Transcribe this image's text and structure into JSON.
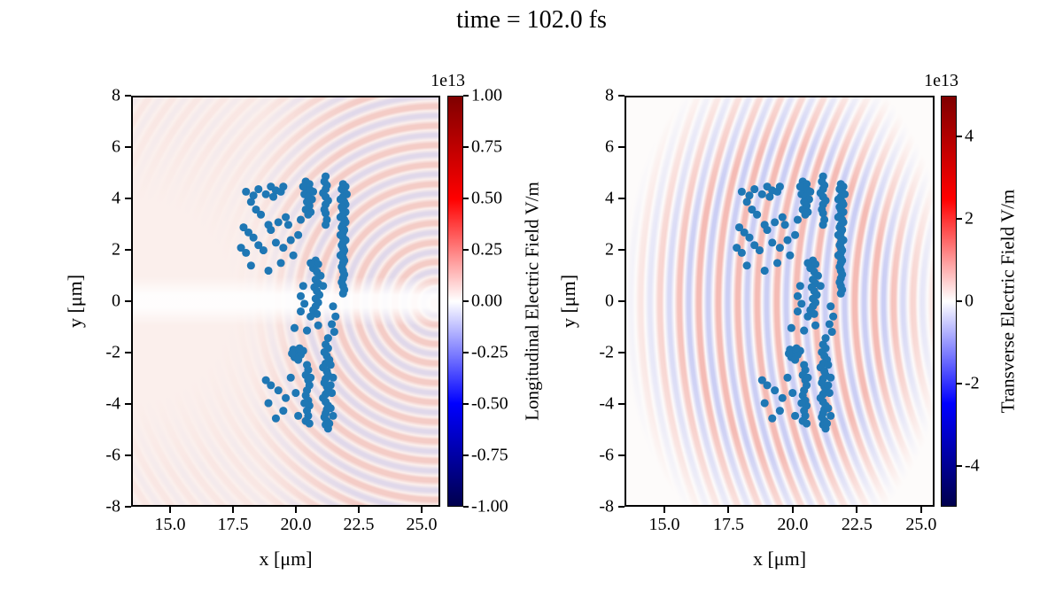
{
  "title": "time = 102.0 fs",
  "chart_data": {
    "type": "scatter",
    "description": "Two particle-in-cell simulation panels: macroparticle scatter over electric-field colormap",
    "scatter": {
      "name": "macroparticles",
      "color": "#1f77b4",
      "marker_radius_px": 4.6,
      "points": [
        [
          21.9,
          4.6
        ],
        [
          22.0,
          4.5
        ],
        [
          21.85,
          4.4
        ],
        [
          21.95,
          4.3
        ],
        [
          22.05,
          4.2
        ],
        [
          21.9,
          4.1
        ],
        [
          21.8,
          4.0
        ],
        [
          21.95,
          3.9
        ],
        [
          22.0,
          3.8
        ],
        [
          21.85,
          3.7
        ],
        [
          21.9,
          3.6
        ],
        [
          22.0,
          3.5
        ],
        [
          21.9,
          3.4
        ],
        [
          21.8,
          3.3
        ],
        [
          21.95,
          3.2
        ],
        [
          22.0,
          3.1
        ],
        [
          21.9,
          3.0
        ],
        [
          21.85,
          2.9
        ],
        [
          21.95,
          2.8
        ],
        [
          21.9,
          2.7
        ],
        [
          21.8,
          2.6
        ],
        [
          21.9,
          2.5
        ],
        [
          22.0,
          2.4
        ],
        [
          21.9,
          2.3
        ],
        [
          21.85,
          2.2
        ],
        [
          21.9,
          2.1
        ],
        [
          21.95,
          2.0
        ],
        [
          21.9,
          1.9
        ],
        [
          21.8,
          1.8
        ],
        [
          21.9,
          1.7
        ],
        [
          21.95,
          1.6
        ],
        [
          21.9,
          1.5
        ],
        [
          21.85,
          1.35
        ],
        [
          21.9,
          1.2
        ],
        [
          21.95,
          1.05
        ],
        [
          21.9,
          0.9
        ],
        [
          21.85,
          0.75
        ],
        [
          21.9,
          0.6
        ],
        [
          21.95,
          0.45
        ],
        [
          21.9,
          0.3
        ],
        [
          21.5,
          -0.2
        ],
        [
          21.6,
          -0.6
        ],
        [
          21.45,
          -0.9
        ],
        [
          21.55,
          -1.2
        ],
        [
          21.2,
          4.9
        ],
        [
          21.15,
          4.7
        ],
        [
          21.25,
          4.55
        ],
        [
          21.2,
          4.4
        ],
        [
          21.1,
          4.25
        ],
        [
          21.2,
          4.1
        ],
        [
          21.3,
          3.95
        ],
        [
          21.2,
          3.8
        ],
        [
          21.15,
          3.6
        ],
        [
          21.2,
          3.45
        ],
        [
          21.25,
          3.2
        ],
        [
          21.2,
          3.0
        ],
        [
          20.4,
          4.7
        ],
        [
          20.55,
          4.6
        ],
        [
          20.45,
          4.45
        ],
        [
          20.6,
          4.35
        ],
        [
          20.35,
          4.2
        ],
        [
          20.5,
          4.1
        ],
        [
          20.65,
          4.0
        ],
        [
          20.45,
          3.9
        ],
        [
          20.55,
          3.75
        ],
        [
          20.4,
          3.6
        ],
        [
          20.6,
          3.5
        ],
        [
          20.5,
          3.4
        ],
        [
          20.3,
          4.5
        ],
        [
          20.7,
          4.3
        ],
        [
          20.8,
          1.6
        ],
        [
          20.9,
          1.45
        ],
        [
          20.7,
          1.3
        ],
        [
          20.85,
          1.15
        ],
        [
          21.0,
          1.0
        ],
        [
          20.8,
          0.85
        ],
        [
          20.9,
          0.7
        ],
        [
          20.75,
          0.55
        ],
        [
          20.85,
          0.4
        ],
        [
          20.95,
          0.25
        ],
        [
          20.8,
          0.1
        ],
        [
          20.9,
          -0.05
        ],
        [
          20.8,
          -0.2
        ],
        [
          20.7,
          -0.35
        ],
        [
          20.85,
          -0.5
        ],
        [
          20.6,
          1.5
        ],
        [
          21.1,
          0.6
        ],
        [
          20.6,
          -0.6
        ],
        [
          20.3,
          0.6
        ],
        [
          20.2,
          0.2
        ],
        [
          20.35,
          -0.1
        ],
        [
          20.2,
          -0.4
        ],
        [
          21.2,
          -1.7
        ],
        [
          21.3,
          -1.85
        ],
        [
          21.15,
          -2.0
        ],
        [
          21.25,
          -2.15
        ],
        [
          21.35,
          -2.3
        ],
        [
          21.2,
          -2.45
        ],
        [
          21.1,
          -2.6
        ],
        [
          21.25,
          -2.75
        ],
        [
          21.3,
          -2.9
        ],
        [
          21.2,
          -3.05
        ],
        [
          21.15,
          -3.2
        ],
        [
          21.25,
          -3.35
        ],
        [
          21.3,
          -3.5
        ],
        [
          21.2,
          -3.65
        ],
        [
          21.1,
          -3.8
        ],
        [
          21.2,
          -3.95
        ],
        [
          21.3,
          -4.1
        ],
        [
          21.25,
          -4.25
        ],
        [
          21.2,
          -4.4
        ],
        [
          21.15,
          -4.55
        ],
        [
          21.25,
          -4.7
        ],
        [
          21.2,
          -4.85
        ],
        [
          21.3,
          -5.0
        ],
        [
          21.4,
          -2.5
        ],
        [
          21.5,
          -3.0
        ],
        [
          21.45,
          -3.6
        ],
        [
          21.4,
          -4.2
        ],
        [
          21.5,
          -4.5
        ],
        [
          21.35,
          -4.8
        ],
        [
          21.4,
          -3.3
        ],
        [
          20.45,
          -2.5
        ],
        [
          20.5,
          -2.7
        ],
        [
          20.4,
          -2.9
        ],
        [
          20.5,
          -3.1
        ],
        [
          20.55,
          -3.3
        ],
        [
          20.45,
          -3.5
        ],
        [
          20.4,
          -3.7
        ],
        [
          20.5,
          -3.9
        ],
        [
          20.55,
          -4.1
        ],
        [
          20.45,
          -4.3
        ],
        [
          20.5,
          -4.5
        ],
        [
          20.4,
          -4.7
        ],
        [
          20.6,
          -3.0
        ],
        [
          20.35,
          -4.0
        ],
        [
          20.55,
          -4.8
        ],
        [
          19.9,
          -1.9
        ],
        [
          20.05,
          -2.0
        ],
        [
          20.2,
          -2.1
        ],
        [
          19.95,
          -2.2
        ],
        [
          20.1,
          -2.3
        ],
        [
          20.3,
          -1.95
        ],
        [
          19.85,
          -2.05
        ],
        [
          20.15,
          -1.85
        ],
        [
          18.0,
          4.3
        ],
        [
          18.3,
          4.15
        ],
        [
          18.2,
          3.9
        ],
        [
          18.5,
          4.4
        ],
        [
          18.8,
          4.2
        ],
        [
          19.0,
          4.5
        ],
        [
          19.2,
          4.35
        ],
        [
          19.1,
          4.1
        ],
        [
          19.4,
          4.3
        ],
        [
          19.5,
          4.5
        ],
        [
          18.4,
          3.6
        ],
        [
          18.6,
          3.4
        ],
        [
          17.9,
          2.9
        ],
        [
          18.1,
          2.7
        ],
        [
          18.3,
          2.5
        ],
        [
          18.9,
          3.0
        ],
        [
          19.0,
          2.8
        ],
        [
          19.3,
          3.1
        ],
        [
          19.6,
          3.3
        ],
        [
          19.7,
          3.0
        ],
        [
          17.8,
          2.1
        ],
        [
          18.0,
          1.9
        ],
        [
          18.5,
          2.2
        ],
        [
          18.7,
          2.0
        ],
        [
          19.2,
          2.3
        ],
        [
          19.5,
          2.1
        ],
        [
          19.8,
          2.4
        ],
        [
          18.2,
          1.4
        ],
        [
          18.9,
          1.2
        ],
        [
          19.4,
          1.5
        ],
        [
          19.9,
          1.8
        ],
        [
          20.1,
          2.6
        ],
        [
          20.2,
          3.2
        ],
        [
          19.8,
          -3.0
        ],
        [
          19.0,
          -3.3
        ],
        [
          19.3,
          -3.5
        ],
        [
          19.6,
          -3.8
        ],
        [
          18.9,
          -4.0
        ],
        [
          19.5,
          -4.3
        ],
        [
          20.0,
          -3.6
        ],
        [
          20.1,
          -4.5
        ],
        [
          19.2,
          -4.6
        ],
        [
          18.8,
          -3.1
        ],
        [
          20.9,
          -0.95
        ],
        [
          20.45,
          -1.15
        ],
        [
          19.95,
          -1.05
        ],
        [
          21.3,
          -1.45
        ]
      ]
    },
    "colormap_stops": [
      "#7f0000",
      "#ff0000",
      "#ffffff",
      "#0000ff",
      "#00004d"
    ],
    "panels": [
      {
        "id": "longitudinal",
        "xlabel": "x [μm]",
        "ylabel": "y [μm]",
        "xlim": [
          13.45,
          25.74
        ],
        "ylim": [
          -8,
          8
        ],
        "xticks": [
          "15.0",
          "17.5",
          "20.0",
          "22.5",
          "25.0"
        ],
        "xtick_values": [
          15.0,
          17.5,
          20.0,
          22.5,
          25.0
        ],
        "yticks": [
          "8",
          "6",
          "4",
          "2",
          "0",
          "-2",
          "-4",
          "-6",
          "-8"
        ],
        "ytick_values": [
          8,
          6,
          4,
          2,
          0,
          -2,
          -4,
          -6,
          -8
        ],
        "colorbar": {
          "label": "Longitudinal Electric Field V/m",
          "scale": "1e13",
          "vmin": -1.0,
          "vmax": 1.0,
          "ticks": [
            "1.00",
            "0.75",
            "0.50",
            "0.25",
            "0.00",
            "-0.25",
            "-0.50",
            "-0.75",
            "-1.00"
          ],
          "tick_values": [
            1.0,
            0.75,
            0.5,
            0.25,
            0.0,
            -0.25,
            -0.5,
            -0.75,
            -1.0
          ],
          "colormap": "seismic"
        }
      },
      {
        "id": "transverse",
        "xlabel": "x [μm]",
        "ylabel": "y [μm]",
        "xlim": [
          13.45,
          25.52
        ],
        "ylim": [
          -8,
          8
        ],
        "xticks": [
          "15.0",
          "17.5",
          "20.0",
          "22.5",
          "25.0"
        ],
        "xtick_values": [
          15.0,
          17.5,
          20.0,
          22.5,
          25.0
        ],
        "yticks": [
          "8",
          "6",
          "4",
          "2",
          "0",
          "-2",
          "-4",
          "-6",
          "-8"
        ],
        "ytick_values": [
          8,
          6,
          4,
          2,
          0,
          -2,
          -4,
          -6,
          -8
        ],
        "colorbar": {
          "label": "Transverse Electric Field V/m",
          "scale": "1e13",
          "vmin": -5.0,
          "vmax": 5.0,
          "ticks": [
            "4",
            "2",
            "0",
            "-2",
            "-4"
          ],
          "tick_values": [
            4,
            2,
            0,
            -2,
            -4
          ],
          "colormap": "seismic"
        }
      }
    ]
  }
}
